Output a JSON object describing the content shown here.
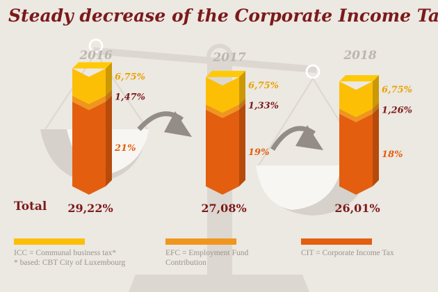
{
  "title": "Steady decrease of the Corporate Income Tax",
  "colors": {
    "icc": "#fcbf06",
    "efc": "#f0951d",
    "cit": "#e35e0f",
    "title": "#7b1a1a",
    "year": "#bcb6ae",
    "scale": "#dcd7d0"
  },
  "chart_data": {
    "type": "bar",
    "stacked": true,
    "categories": [
      "2016",
      "2017",
      "2018"
    ],
    "series": [
      {
        "name": "CIT = Corporate Income Tax",
        "values": [
          21,
          19,
          18
        ],
        "labels": [
          "21%",
          "19%",
          "18%"
        ]
      },
      {
        "name": "EFC = Employment Fund Contribution",
        "values": [
          1.47,
          1.33,
          1.26
        ],
        "labels": [
          "1,47%",
          "1,33%",
          "1,26%"
        ]
      },
      {
        "name": "ICC = Communal business tax*",
        "values": [
          6.75,
          6.75,
          6.75
        ],
        "labels": [
          "6,75%",
          "6,75%",
          "6,75%"
        ]
      }
    ],
    "totals_label": "Total",
    "totals": [
      "29,22%",
      "27,08%",
      "26,01%"
    ]
  },
  "legend": [
    {
      "label": "ICC = Communal business tax*",
      "note": "* based: CBT City of Luxembourg"
    },
    {
      "label": "EFC = Employment Fund",
      "note": "Contribution"
    },
    {
      "label": "CIT = Corporate Income Tax",
      "note": ""
    }
  ]
}
